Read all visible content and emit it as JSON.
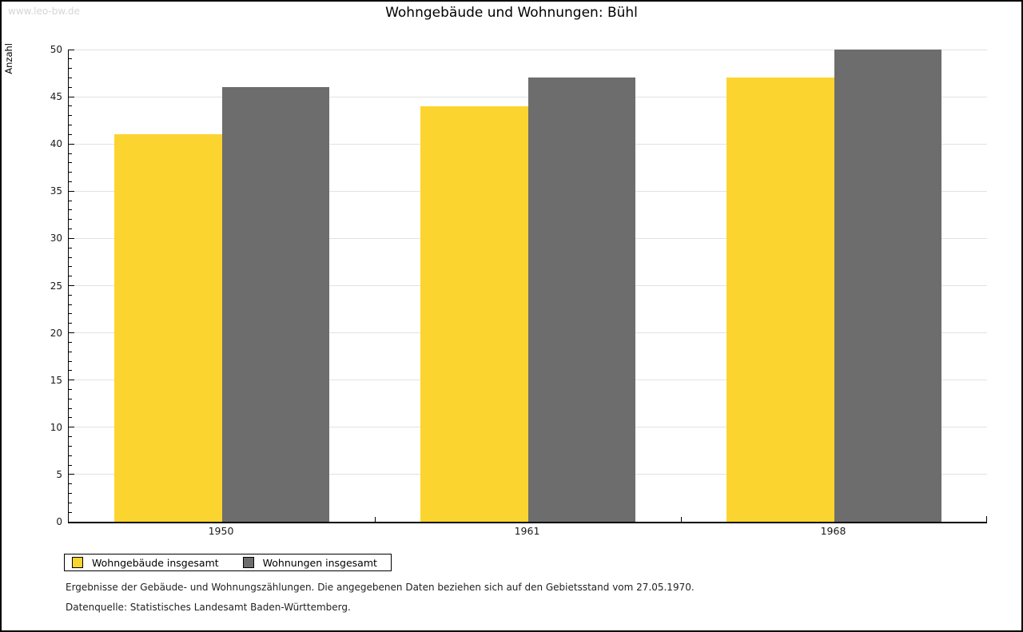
{
  "watermark": "www.leo-bw.de",
  "chart_data": {
    "type": "bar",
    "title": "Wohngebäude und Wohnungen: Bühl",
    "ylabel": "Anzahl",
    "xlabel": "",
    "categories": [
      "1950",
      "1961",
      "1968"
    ],
    "series": [
      {
        "name": "Wohngebäude insgesamt",
        "color": "#fcd42f",
        "values": [
          41,
          44,
          47
        ]
      },
      {
        "name": "Wohnungen insgesamt",
        "color": "#6d6d6d",
        "values": [
          46,
          47,
          50
        ]
      }
    ],
    "ylim": [
      0,
      50
    ],
    "ytick_step": 5,
    "minor_tick_step": 1,
    "grid": true,
    "legend_position": "bottom-left",
    "gridline_color": "#e2e2e2"
  },
  "footer": {
    "line1": "Ergebnisse der Gebäude- und Wohnungszählungen. Die angegebenen Daten beziehen sich auf den Gebietsstand vom 27.05.1970.",
    "line2": "Datenquelle: Statistisches Landesamt Baden-Württemberg."
  }
}
